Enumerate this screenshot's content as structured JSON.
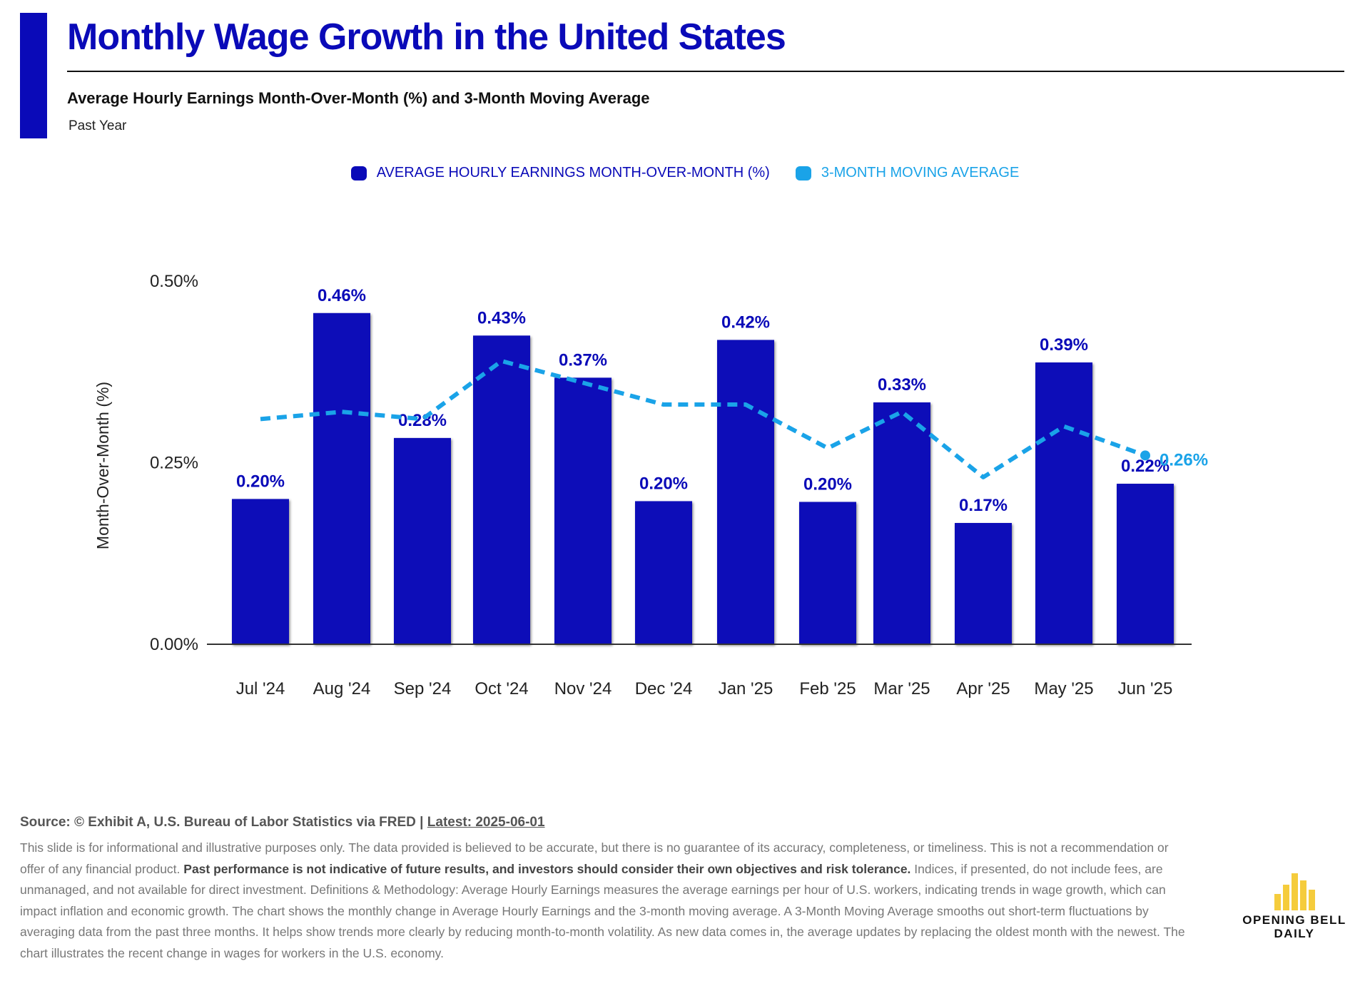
{
  "header": {
    "title": "Monthly Wage Growth in the United States",
    "subtitle": "Average Hourly Earnings Month-Over-Month (%) and 3-Month Moving Average",
    "period": "Past Year"
  },
  "legend": {
    "bars_label": "AVERAGE HOURLY EARNINGS MONTH-OVER-MONTH (%)",
    "line_label": "3-MONTH MOVING AVERAGE"
  },
  "colors": {
    "brand": "#0a0ab8",
    "bar": "#0a0ab8",
    "line": "#1aa3e8",
    "logo": "#f5cc3c"
  },
  "chart_data": {
    "type": "bar",
    "categories": [
      "Jul '24",
      "Aug '24",
      "Sep '24",
      "Oct '24",
      "Nov '24",
      "Dec '24",
      "Jan '25",
      "Feb '25",
      "Mar '25",
      "Apr '25",
      "May '25",
      "Jun '25"
    ],
    "series": [
      {
        "name": "AVERAGE HOURLY EARNINGS MONTH-OVER-MONTH (%)",
        "type": "bar",
        "values": [
          0.2,
          0.456,
          0.284,
          0.425,
          0.367,
          0.197,
          0.419,
          0.196,
          0.333,
          0.167,
          0.388,
          0.221
        ],
        "data_labels": [
          "0.20%",
          "0.46%",
          "0.28%",
          "0.43%",
          "0.37%",
          "0.20%",
          "0.42%",
          "0.20%",
          "0.33%",
          "0.17%",
          "0.39%",
          "0.22%"
        ]
      },
      {
        "name": "3-MONTH MOVING AVERAGE",
        "type": "line",
        "style": "dashed",
        "values": [
          0.31,
          0.32,
          0.31,
          0.39,
          0.36,
          0.33,
          0.33,
          0.27,
          0.32,
          0.23,
          0.3,
          0.26
        ],
        "end_label": "0.26%"
      }
    ],
    "ylabel": "Month-Over-Month (%)",
    "xlabel": "",
    "ylim": [
      0,
      0.5
    ],
    "yticks": [
      0,
      0.25,
      0.5
    ],
    "ytick_labels": [
      "0.00%",
      "0.25%",
      "0.50%"
    ],
    "grid": false,
    "legend_position": "top-center"
  },
  "footer": {
    "source": "Source: © Exhibit A, U.S. Bureau of Labor Statistics via FRED | ",
    "latest": "Latest: 2025-06-01",
    "disclaimer_part1": "This slide is for informational and illustrative purposes only. The data provided is believed to be accurate, but there is no guarantee of its accuracy, completeness, or timeliness. This is not a recommendation or offer of any financial product. ",
    "disclaimer_bold": "Past performance is not indicative of future results, and investors should consider their own objectives and risk tolerance.",
    "disclaimer_part2": " Indices, if presented, do not include fees, are unmanaged, and not available for direct investment. Definitions & Methodology: Average Hourly Earnings measures the average earnings per hour of U.S. workers, indicating trends in wage growth, which can impact inflation and economic growth. The chart shows the monthly change in Average Hourly Earnings and the 3-month moving average. A 3-Month Moving Average smooths out short-term fluctuations by averaging data from the past three months. It helps show trends more clearly by reducing month-to-month volatility. As new data comes in, the average updates by replacing the oldest month with the newest. The chart illustrates the recent change in wages for workers in the U.S. economy."
  },
  "logo": {
    "line1": "OPENING BELL",
    "line2": "DAILY",
    "bar_levels": [
      0.45,
      0.7,
      1.0,
      0.8,
      0.55
    ]
  }
}
